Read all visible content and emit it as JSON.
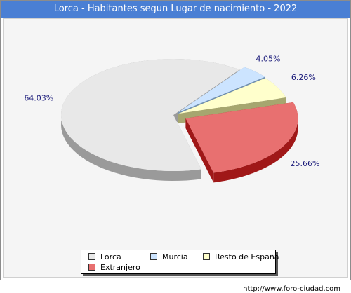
{
  "chart_title": "Lorca - Habitantes segun Lugar de nacimiento - 2022",
  "footer_url": "http://www.foro-ciudad.com",
  "chart_data": {
    "type": "pie",
    "title": "Lorca - Habitantes segun Lugar de nacimiento - 2022",
    "legend_position": "bottom",
    "slices": [
      {
        "label": "Lorca",
        "value": 64.03,
        "value_label": "64.03%",
        "color": "#e8e8e8",
        "side_color": "#9a9a9a"
      },
      {
        "label": "Murcia",
        "value": 4.05,
        "value_label": "4.05%",
        "color": "#cce4ff",
        "side_color": "#6f8fb0"
      },
      {
        "label": "Resto de España",
        "value": 6.26,
        "value_label": "6.26%",
        "color": "#ffffcc",
        "side_color": "#a6a66f"
      },
      {
        "label": "Extranjero",
        "value": 25.66,
        "value_label": "25.66%",
        "color": "#e87070",
        "side_color": "#a01818"
      }
    ]
  }
}
